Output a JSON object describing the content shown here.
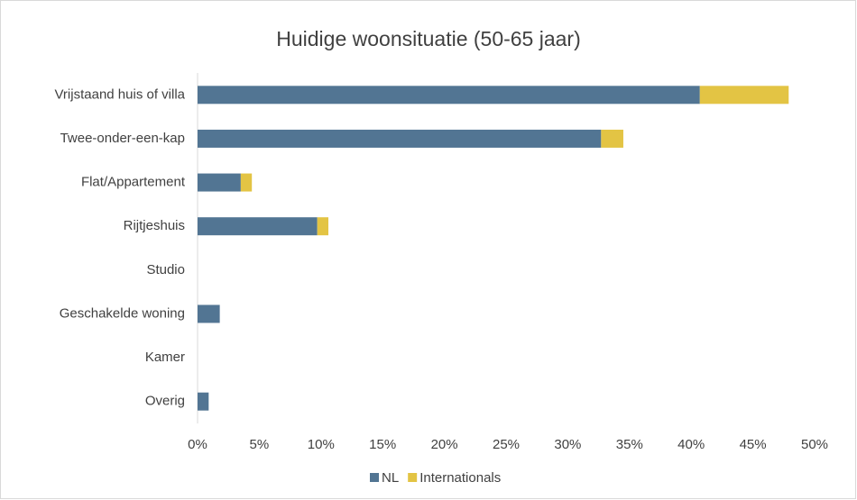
{
  "chart_data": {
    "type": "stacked_barh",
    "title": "Huidige woonsituatie (50-65 jaar)",
    "categories": [
      "Vrijstaand huis of villa",
      "Twee-onder-een-kap",
      "Flat/Appartement",
      "Rijtjeshuis",
      "Studio",
      "Geschakelde woning",
      "Kamer",
      "Overig"
    ],
    "series": [
      {
        "name": "NL",
        "color": "#527593",
        "values": [
          40.7,
          32.7,
          3.5,
          9.7,
          0,
          1.8,
          0,
          0.9
        ]
      },
      {
        "name": "Internationals",
        "color": "#e3c444",
        "values": [
          7.2,
          1.8,
          0.9,
          0.9,
          0,
          0,
          0,
          0
        ]
      }
    ],
    "xlim": [
      0,
      50
    ],
    "xticks": [
      {
        "value": 0,
        "label": "0%"
      },
      {
        "value": 5,
        "label": "5%"
      },
      {
        "value": 10,
        "label": "10%"
      },
      {
        "value": 15,
        "label": "15%"
      },
      {
        "value": 20,
        "label": "20%"
      },
      {
        "value": 25,
        "label": "25%"
      },
      {
        "value": 30,
        "label": "30%"
      },
      {
        "value": 35,
        "label": "35%"
      },
      {
        "value": 40,
        "label": "40%"
      },
      {
        "value": 45,
        "label": "45%"
      },
      {
        "value": 50,
        "label": "50%"
      }
    ],
    "legend": "bottom",
    "grid": false
  }
}
